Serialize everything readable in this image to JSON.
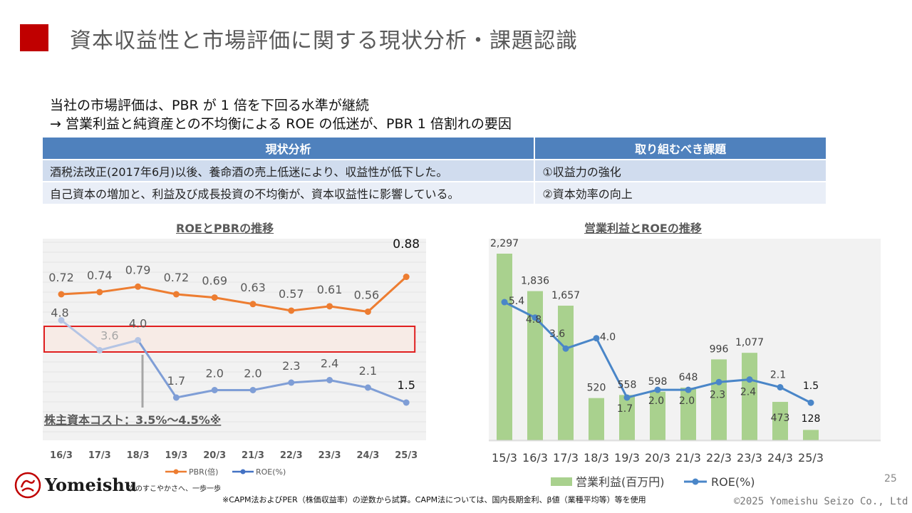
{
  "header": {
    "title": "資本収益性と市場評価に関する現状分析・課題認識",
    "accent_color": "#c00000"
  },
  "lead": {
    "line1": "当社の市場評価は、PBR が 1 倍を下回る水準が継続",
    "line2": "→ 営業利益と純資産との不均衡による ROE の低迷が、PBR 1 倍割れの要因"
  },
  "table": {
    "headers": [
      "現状分析",
      "取り組むべき課題"
    ],
    "rows": [
      [
        "酒税法改正(2017年6月)以後、養命酒の売上低迷により、収益性が低下した。",
        "①収益力の強化"
      ],
      [
        "自己資本の増加と、利益及び成長投資の不均衡が、資本収益性に影響している。",
        "②資本効率の向上"
      ]
    ]
  },
  "chart_data": [
    {
      "type": "line",
      "title": "ROEとPBRの推移",
      "categories": [
        "16/3",
        "17/3",
        "18/3",
        "19/3",
        "20/3",
        "21/3",
        "22/3",
        "23/3",
        "24/3",
        "25/3"
      ],
      "series": [
        {
          "name": "PBR(倍)",
          "color": "#ed7d31",
          "values": [
            0.72,
            0.74,
            0.79,
            0.72,
            0.69,
            0.63,
            0.57,
            0.61,
            0.56,
            0.88
          ],
          "labels": [
            "0.72",
            "0.74",
            "0.79",
            "0.72",
            "0.69",
            "0.63",
            "0.57",
            "0.61",
            "0.56",
            "0.88"
          ]
        },
        {
          "name": "ROE(%)",
          "color": "#4472c4",
          "values": [
            4.8,
            3.6,
            4.0,
            1.7,
            2.0,
            2.0,
            2.3,
            2.4,
            2.1,
            1.5
          ],
          "labels": [
            "4.8",
            "3.6",
            "4.0",
            "1.7",
            "2.0",
            "2.0",
            "2.3",
            "2.4",
            "2.1",
            "1.5"
          ]
        }
      ],
      "cost_band": {
        "low": 3.5,
        "high": 4.5,
        "label": "株主資本コスト：3.5%～4.5%※"
      },
      "legend": "bottom"
    },
    {
      "type": "bar",
      "title": "営業利益とROEの推移",
      "categories": [
        "15/3",
        "16/3",
        "17/3",
        "18/3",
        "19/3",
        "20/3",
        "21/3",
        "22/3",
        "23/3",
        "24/3",
        "25/3"
      ],
      "series": [
        {
          "name": "営業利益(百万円)",
          "type": "bar",
          "color": "#a9d18e",
          "values": [
            2297,
            1836,
            1657,
            520,
            558,
            598,
            648,
            996,
            1077,
            473,
            128
          ],
          "labels": [
            "2,297",
            "1,836",
            "1,657",
            "520",
            "558",
            "598",
            "648",
            "996",
            "1,077",
            "473",
            "128"
          ]
        },
        {
          "name": "ROE(%)",
          "type": "line",
          "color": "#4a86c8",
          "values": [
            5.4,
            4.8,
            3.6,
            4.0,
            1.7,
            2.0,
            2.0,
            2.3,
            2.4,
            2.1,
            1.5
          ],
          "labels": [
            "5.4",
            "4.8",
            "3.6",
            "4.0",
            "1.7",
            "2.0",
            "2.0",
            "2.3",
            "2.4",
            "2.1",
            "1.5"
          ]
        }
      ],
      "legend": "bottom"
    }
  ],
  "footer": {
    "logo_text": "Yomeishu",
    "tagline": "次のすこやかさへ、一歩一歩",
    "page_number": "25",
    "footnote": "※CAPM法およびPER（株価収益率）の逆数から試算。CAPM法については、国内長期金利、β値（業種平均等）等を使用",
    "copyright": "©2025 Yomeishu Seizo Co., Ltd"
  }
}
